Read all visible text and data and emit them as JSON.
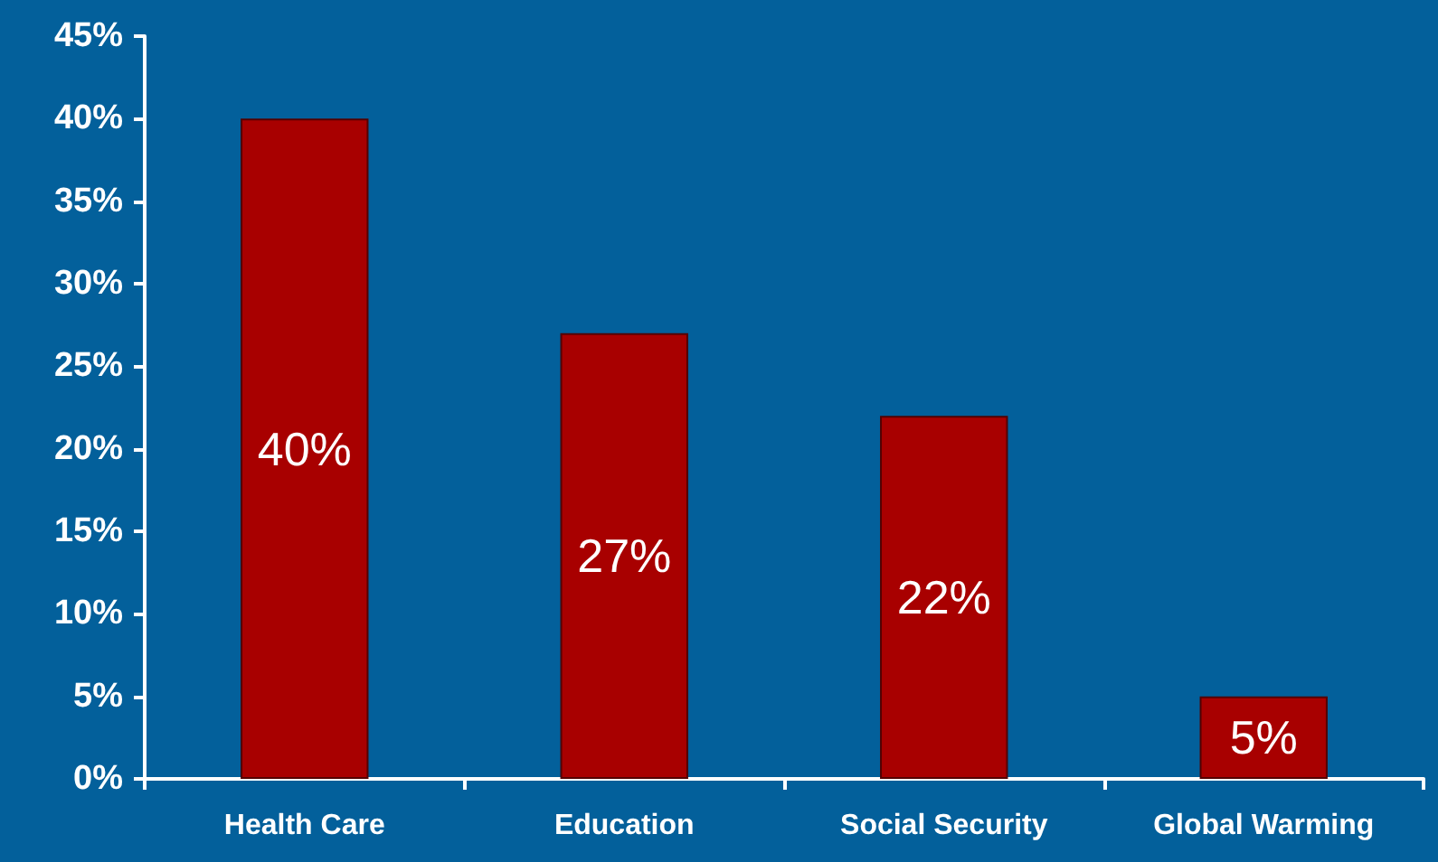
{
  "chart_data": {
    "type": "bar",
    "categories": [
      "Health Care",
      "Education",
      "Social Security",
      "Global Warming"
    ],
    "values": [
      40,
      27,
      22,
      5
    ],
    "color": "#a80000",
    "value_labels": [
      "40%",
      "27%",
      "22%",
      "5%"
    ],
    "ylim": [
      0,
      45
    ],
    "yticks": [
      {
        "value": 0,
        "label": "0%"
      },
      {
        "value": 5,
        "label": "5%"
      },
      {
        "value": 10,
        "label": "10%"
      },
      {
        "value": 15,
        "label": "15%"
      },
      {
        "value": 20,
        "label": "20%"
      },
      {
        "value": 25,
        "label": "25%"
      },
      {
        "value": 30,
        "label": "30%"
      },
      {
        "value": 35,
        "label": "35%"
      },
      {
        "value": 40,
        "label": "40%"
      },
      {
        "value": 45,
        "label": "45%"
      }
    ],
    "grid": false
  }
}
